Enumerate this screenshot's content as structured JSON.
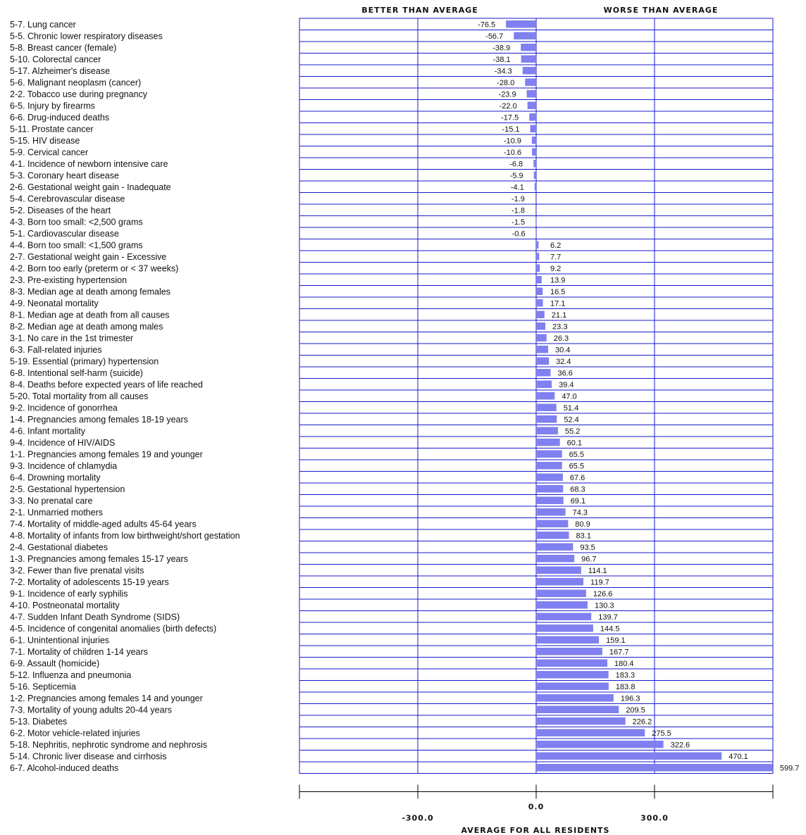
{
  "chart_data": {
    "type": "bar",
    "orientation": "horizontal",
    "header_left": "BETTER THAN AVERAGE",
    "header_right": "WORSE THAN AVERAGE",
    "xlabel": "AVERAGE FOR ALL RESIDENTS",
    "xlim": [
      -600,
      600
    ],
    "xticks": [
      {
        "value": -300,
        "label": "-300.0"
      },
      {
        "value": 0,
        "label": "0.0"
      },
      {
        "value": 300,
        "label": "300.0"
      }
    ],
    "bar_color": "#8080f0",
    "grid": true,
    "items": [
      {
        "label": "5-7.  Lung cancer",
        "value": -76.5,
        "text": "-76.5"
      },
      {
        "label": "5-5.  Chronic lower respiratory diseases",
        "value": -56.7,
        "text": "-56.7"
      },
      {
        "label": "5-8.  Breast cancer (female)",
        "value": -38.9,
        "text": "-38.9"
      },
      {
        "label": "5-10.  Colorectal cancer",
        "value": -38.1,
        "text": "-38.1"
      },
      {
        "label": "5-17.  Alzheimer's disease",
        "value": -34.3,
        "text": "-34.3"
      },
      {
        "label": "5-6.  Malignant neoplasm (cancer)",
        "value": -28.0,
        "text": "-28.0"
      },
      {
        "label": "2-2.  Tobacco use during pregnancy",
        "value": -23.9,
        "text": "-23.9"
      },
      {
        "label": "6-5.  Injury by firearms",
        "value": -22.0,
        "text": "-22.0"
      },
      {
        "label": "6-6.  Drug-induced deaths",
        "value": -17.5,
        "text": "-17.5"
      },
      {
        "label": "5-11.  Prostate cancer",
        "value": -15.1,
        "text": "-15.1"
      },
      {
        "label": "5-15.  HIV disease",
        "value": -10.9,
        "text": "-10.9"
      },
      {
        "label": "5-9.  Cervical cancer",
        "value": -10.6,
        "text": "-10.6"
      },
      {
        "label": "4-1.  Incidence of newborn intensive care",
        "value": -6.8,
        "text": "-6.8"
      },
      {
        "label": "5-3.  Coronary heart disease",
        "value": -5.9,
        "text": "-5.9"
      },
      {
        "label": "2-6.  Gestational weight gain - Inadequate",
        "value": -4.1,
        "text": "-4.1"
      },
      {
        "label": "5-4.  Cerebrovascular disease",
        "value": -1.9,
        "text": "-1.9"
      },
      {
        "label": "5-2.  Diseases of the heart",
        "value": -1.8,
        "text": "-1.8"
      },
      {
        "label": "4-3.  Born too small: <2,500 grams",
        "value": -1.5,
        "text": "-1.5"
      },
      {
        "label": "5-1.  Cardiovascular disease",
        "value": -0.6,
        "text": "-0.6"
      },
      {
        "label": "4-4.  Born too small: <1,500 grams",
        "value": 6.2,
        "text": "6.2"
      },
      {
        "label": "2-7.  Gestational weight gain - Excessive",
        "value": 7.7,
        "text": "7.7"
      },
      {
        "label": "4-2.  Born too early (preterm or < 37 weeks)",
        "value": 9.2,
        "text": "9.2"
      },
      {
        "label": "2-3.  Pre-existing hypertension",
        "value": 13.9,
        "text": "13.9"
      },
      {
        "label": "8-3.  Median age at death among females",
        "value": 16.5,
        "text": "16.5"
      },
      {
        "label": "4-9.  Neonatal mortality",
        "value": 17.1,
        "text": "17.1"
      },
      {
        "label": "8-1.  Median age at death from all causes",
        "value": 21.1,
        "text": "21.1"
      },
      {
        "label": "8-2.  Median age at death among males",
        "value": 23.3,
        "text": "23.3"
      },
      {
        "label": "3-1.  No care in the 1st trimester",
        "value": 26.3,
        "text": "26.3"
      },
      {
        "label": "6-3.  Fall-related injuries",
        "value": 30.4,
        "text": "30.4"
      },
      {
        "label": "5-19.  Essential (primary) hypertension",
        "value": 32.4,
        "text": "32.4"
      },
      {
        "label": "6-8.  Intentional self-harm (suicide)",
        "value": 36.6,
        "text": "36.6"
      },
      {
        "label": "8-4.  Deaths before expected years of life reached",
        "value": 39.4,
        "text": "39.4"
      },
      {
        "label": "5-20.  Total mortality from all causes",
        "value": 47.0,
        "text": "47.0"
      },
      {
        "label": "9-2.  Incidence of gonorrhea",
        "value": 51.4,
        "text": "51.4"
      },
      {
        "label": "1-4.  Pregnancies among females 18-19 years",
        "value": 52.4,
        "text": "52.4"
      },
      {
        "label": "4-6.  Infant mortality",
        "value": 55.2,
        "text": "55.2"
      },
      {
        "label": "9-4.  Incidence of HIV/AIDS",
        "value": 60.1,
        "text": "60.1"
      },
      {
        "label": "1-1.  Pregnancies among females 19 and younger",
        "value": 65.5,
        "text": "65.5"
      },
      {
        "label": "9-3.  Incidence of chlamydia",
        "value": 65.5,
        "text": "65.5"
      },
      {
        "label": "6-4.  Drowning mortality",
        "value": 67.6,
        "text": "67.6"
      },
      {
        "label": "2-5.  Gestational hypertension",
        "value": 68.3,
        "text": "68.3"
      },
      {
        "label": "3-3.  No prenatal care",
        "value": 69.1,
        "text": "69.1"
      },
      {
        "label": "2-1.  Unmarried mothers",
        "value": 74.3,
        "text": "74.3"
      },
      {
        "label": "7-4.  Mortality of middle-aged adults 45-64 years",
        "value": 80.9,
        "text": "80.9"
      },
      {
        "label": "4-8.  Mortality of infants from low birthweight/short gestation",
        "value": 83.1,
        "text": "83.1"
      },
      {
        "label": "2-4.  Gestational diabetes",
        "value": 93.5,
        "text": "93.5"
      },
      {
        "label": "1-3.  Pregnancies among females 15-17 years",
        "value": 96.7,
        "text": "96.7"
      },
      {
        "label": "3-2.  Fewer than five prenatal visits",
        "value": 114.1,
        "text": "114.1"
      },
      {
        "label": "7-2.  Mortality of adolescents 15-19 years",
        "value": 119.7,
        "text": "119.7"
      },
      {
        "label": "9-1.  Incidence of early syphilis",
        "value": 126.6,
        "text": "126.6"
      },
      {
        "label": "4-10.  Postneonatal mortality",
        "value": 130.3,
        "text": "130.3"
      },
      {
        "label": "4-7.  Sudden Infant Death Syndrome (SIDS)",
        "value": 139.7,
        "text": "139.7"
      },
      {
        "label": "4-5.  Incidence of congenital anomalies (birth defects)",
        "value": 144.5,
        "text": "144.5"
      },
      {
        "label": "6-1.  Unintentional injuries",
        "value": 159.1,
        "text": "159.1"
      },
      {
        "label": "7-1.  Mortality of children 1-14 years",
        "value": 167.7,
        "text": "167.7"
      },
      {
        "label": "6-9.  Assault (homicide)",
        "value": 180.4,
        "text": "180.4"
      },
      {
        "label": "5-12.  Influenza and pneumonia",
        "value": 183.3,
        "text": "183.3"
      },
      {
        "label": "5-16.  Septicemia",
        "value": 183.8,
        "text": "183.8"
      },
      {
        "label": "1-2.  Pregnancies among females 14 and younger",
        "value": 196.3,
        "text": "196.3"
      },
      {
        "label": "7-3.  Mortality of young adults 20-44 years",
        "value": 209.5,
        "text": "209.5"
      },
      {
        "label": "5-13.  Diabetes",
        "value": 226.2,
        "text": "226.2"
      },
      {
        "label": "6-2.  Motor vehicle-related injuries",
        "value": 275.5,
        "text": "275.5"
      },
      {
        "label": "5-18.  Nephritis, nephrotic syndrome and nephrosis",
        "value": 322.6,
        "text": "322.6"
      },
      {
        "label": "5-14.  Chronic liver disease and cirrhosis",
        "value": 470.1,
        "text": "470.1"
      },
      {
        "label": "6-7.  Alcohol-induced deaths",
        "value": 599.7,
        "text": "599.7"
      }
    ]
  }
}
